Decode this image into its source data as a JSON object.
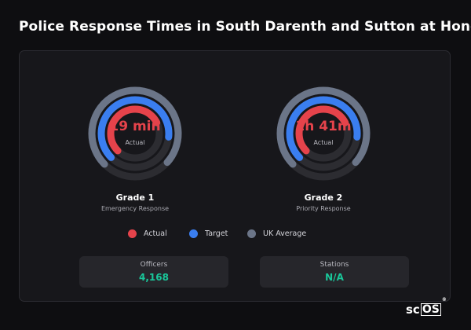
{
  "title": "Police Response Times in South Darenth and Sutton at Hone",
  "colors": {
    "actual": "#e5434b",
    "target": "#3a7ef0",
    "uk_average": "#6b7588",
    "track": "#2c2c31",
    "stat_value": "#19c79a"
  },
  "grades": [
    {
      "name": "Grade 1",
      "subtitle": "Emergency Response",
      "value_text": "19 min",
      "value_caption": "Actual",
      "fill_fraction": {
        "actual": 0.55,
        "target": 0.64,
        "uk_average": 0.74
      }
    },
    {
      "name": "Grade 2",
      "subtitle": "Priority Response",
      "value_text": "1h 41m",
      "value_caption": "Actual",
      "fill_fraction": {
        "actual": 0.55,
        "target": 0.64,
        "uk_average": 0.74
      }
    }
  ],
  "legend": [
    {
      "label": "Actual",
      "color": "#e5434b"
    },
    {
      "label": "Target",
      "color": "#3a7ef0"
    },
    {
      "label": "UK Average",
      "color": "#6b7588"
    }
  ],
  "stats": [
    {
      "label": "Officers",
      "value": "4,168"
    },
    {
      "label": "Stations",
      "value": "N/A"
    }
  ],
  "logo": {
    "sc": "sc",
    "os": "OS",
    "reg": "®"
  }
}
